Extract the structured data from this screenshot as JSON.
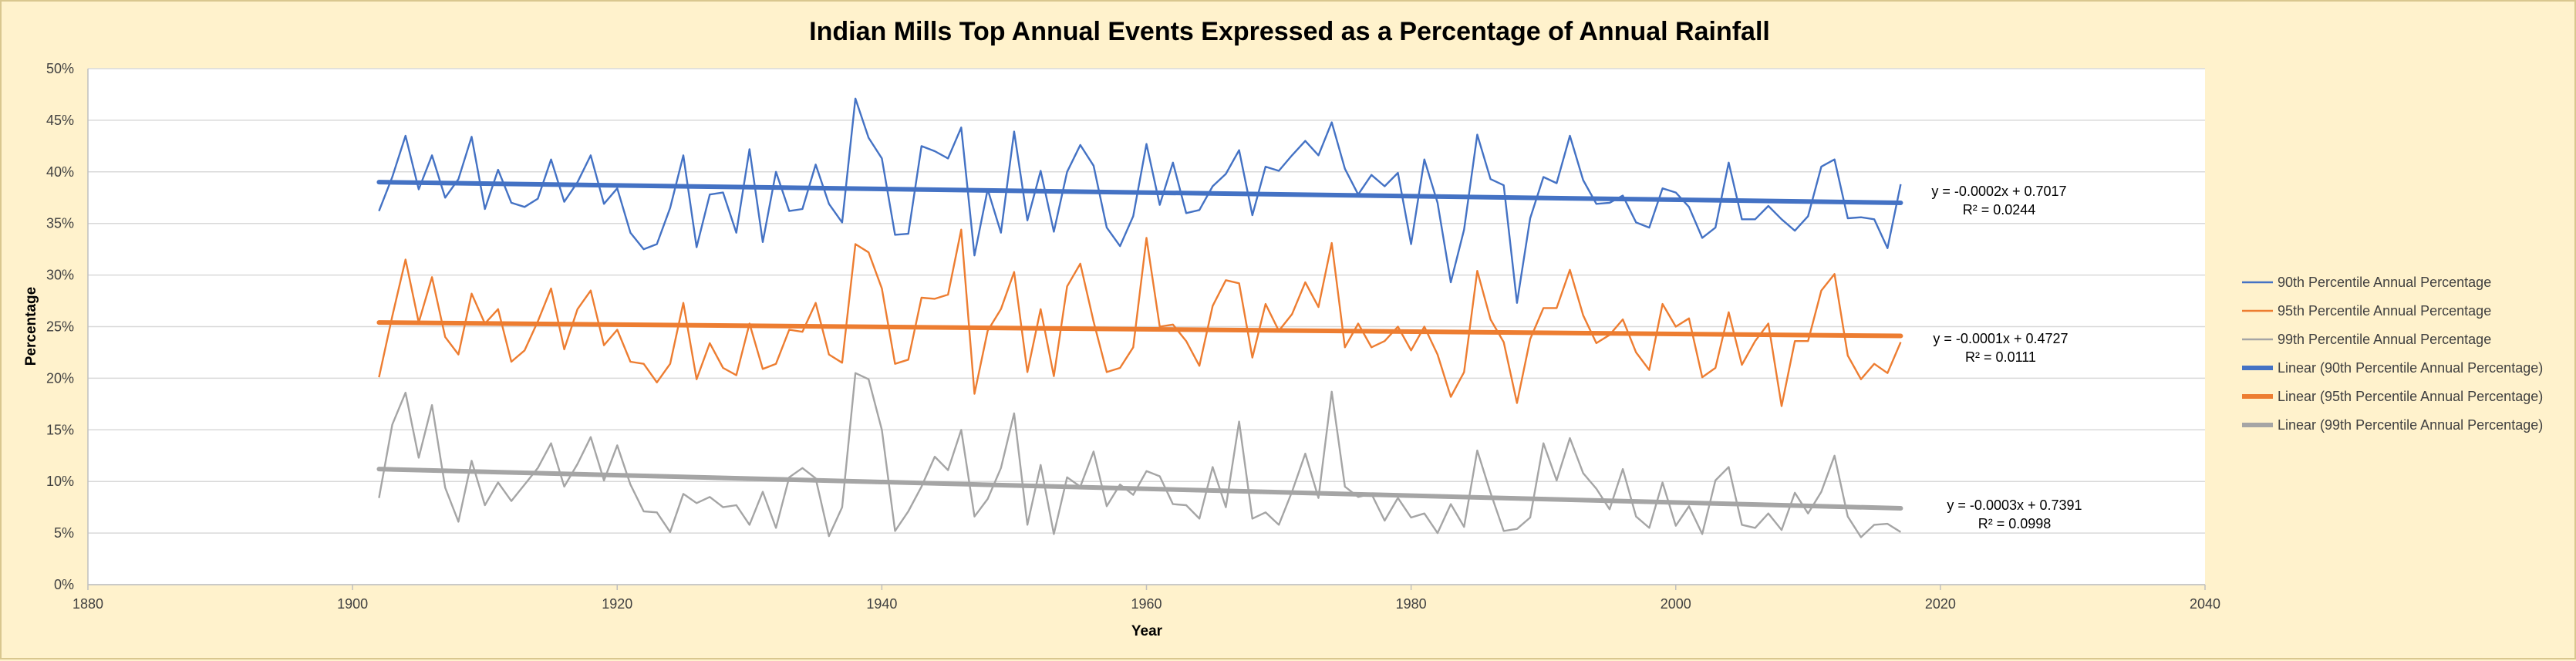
{
  "chart_data": {
    "type": "line",
    "title": "Indian Mills Top Annual Events Expressed as a Percentage of Annual Rainfall",
    "xlabel": "Year",
    "ylabel": "Percentage",
    "xlim": [
      1880,
      2040
    ],
    "ylim": [
      0,
      0.5
    ],
    "x_ticks": [
      "1880",
      "1900",
      "1920",
      "1940",
      "1960",
      "1980",
      "2000",
      "2020",
      "2040"
    ],
    "y_ticks": [
      "0%",
      "5%",
      "10%",
      "15%",
      "20%",
      "25%",
      "30%",
      "35%",
      "40%",
      "45%",
      "50%"
    ],
    "grid": "horizontal",
    "legend_position": "right",
    "x": [
      1902,
      1903,
      1904,
      1905,
      1906,
      1907,
      1908,
      1909,
      1910,
      1911,
      1912,
      1913,
      1914,
      1915,
      1916,
      1917,
      1918,
      1919,
      1920,
      1921,
      1922,
      1923,
      1924,
      1925,
      1926,
      1927,
      1928,
      1929,
      1930,
      1931,
      1932,
      1933,
      1934,
      1935,
      1936,
      1937,
      1938,
      1939,
      1940,
      1941,
      1942,
      1943,
      1944,
      1945,
      1946,
      1947,
      1948,
      1949,
      1950,
      1951,
      1952,
      1953,
      1954,
      1955,
      1956,
      1957,
      1958,
      1959,
      1960,
      1961,
      1962,
      1963,
      1964,
      1965,
      1966,
      1967,
      1968,
      1969,
      1970,
      1971,
      1972,
      1973,
      1974,
      1975,
      1976,
      1977,
      1978,
      1979,
      1980,
      1981,
      1982,
      1983,
      1984,
      1985,
      1986,
      1987,
      1988,
      1989,
      1990,
      1991,
      1992,
      1993,
      1994,
      1995,
      1996,
      1997,
      1998,
      1999,
      2000,
      2001,
      2002,
      2003,
      2004,
      2005,
      2006,
      2007,
      2008,
      2009,
      2010,
      2011,
      2012,
      2013,
      2014,
      2015,
      2016,
      2017
    ],
    "series": [
      {
        "name": "90th Percentile Annual Percentage",
        "color": "#4472c4",
        "values": [
          0.362,
          0.395,
          0.435,
          0.383,
          0.416,
          0.375,
          0.393,
          0.434,
          0.364,
          0.402,
          0.37,
          0.366,
          0.374,
          0.412,
          0.371,
          0.39,
          0.416,
          0.369,
          0.384,
          0.341,
          0.325,
          0.33,
          0.365,
          0.416,
          0.327,
          0.378,
          0.38,
          0.341,
          0.422,
          0.332,
          0.4,
          0.362,
          0.364,
          0.407,
          0.369,
          0.351,
          0.471,
          0.433,
          0.413,
          0.339,
          0.34,
          0.425,
          0.42,
          0.413,
          0.443,
          0.319,
          0.383,
          0.341,
          0.439,
          0.353,
          0.401,
          0.342,
          0.4,
          0.426,
          0.406,
          0.346,
          0.328,
          0.357,
          0.427,
          0.368,
          0.409,
          0.36,
          0.363,
          0.386,
          0.398,
          0.421,
          0.358,
          0.405,
          0.401,
          0.416,
          0.43,
          0.416,
          0.448,
          0.403,
          0.378,
          0.397,
          0.386,
          0.399,
          0.33,
          0.412,
          0.37,
          0.293,
          0.344,
          0.436,
          0.393,
          0.387,
          0.273,
          0.355,
          0.395,
          0.389,
          0.435,
          0.392,
          0.369,
          0.37,
          0.377,
          0.351,
          0.346,
          0.384,
          0.38,
          0.366,
          0.336,
          0.346,
          0.409,
          0.354,
          0.354,
          0.367,
          0.354,
          0.343,
          0.357,
          0.405,
          0.412,
          0.355,
          0.356,
          0.354,
          0.326,
          0.388
        ]
      },
      {
        "name": "95th Percentile Annual Percentage",
        "color": "#ed7d31",
        "values": [
          0.201,
          0.26,
          0.315,
          0.254,
          0.298,
          0.24,
          0.223,
          0.282,
          0.253,
          0.267,
          0.216,
          0.227,
          0.255,
          0.287,
          0.228,
          0.267,
          0.285,
          0.232,
          0.247,
          0.216,
          0.214,
          0.196,
          0.214,
          0.273,
          0.199,
          0.234,
          0.21,
          0.203,
          0.253,
          0.209,
          0.214,
          0.247,
          0.245,
          0.273,
          0.223,
          0.215,
          0.33,
          0.322,
          0.287,
          0.214,
          0.218,
          0.278,
          0.277,
          0.281,
          0.344,
          0.185,
          0.246,
          0.267,
          0.303,
          0.206,
          0.267,
          0.202,
          0.289,
          0.311,
          0.255,
          0.206,
          0.21,
          0.23,
          0.336,
          0.25,
          0.252,
          0.236,
          0.212,
          0.27,
          0.295,
          0.292,
          0.22,
          0.272,
          0.246,
          0.262,
          0.293,
          0.269,
          0.331,
          0.23,
          0.253,
          0.23,
          0.236,
          0.25,
          0.227,
          0.25,
          0.223,
          0.182,
          0.206,
          0.304,
          0.257,
          0.235,
          0.176,
          0.238,
          0.268,
          0.268,
          0.305,
          0.261,
          0.234,
          0.242,
          0.257,
          0.225,
          0.208,
          0.272,
          0.25,
          0.258,
          0.201,
          0.21,
          0.264,
          0.213,
          0.236,
          0.253,
          0.173,
          0.236,
          0.236,
          0.285,
          0.301,
          0.222,
          0.199,
          0.214,
          0.205,
          0.235
        ]
      },
      {
        "name": "99th Percentile Annual Percentage",
        "color": "#a5a5a5",
        "values": [
          0.084,
          0.155,
          0.186,
          0.123,
          0.174,
          0.094,
          0.061,
          0.12,
          0.077,
          0.099,
          0.081,
          0.097,
          0.113,
          0.137,
          0.095,
          0.117,
          0.143,
          0.101,
          0.135,
          0.097,
          0.071,
          0.07,
          0.051,
          0.088,
          0.079,
          0.085,
          0.075,
          0.077,
          0.058,
          0.09,
          0.055,
          0.104,
          0.113,
          0.103,
          0.047,
          0.075,
          0.205,
          0.199,
          0.15,
          0.052,
          0.071,
          0.095,
          0.124,
          0.111,
          0.15,
          0.066,
          0.083,
          0.113,
          0.166,
          0.058,
          0.116,
          0.049,
          0.104,
          0.095,
          0.129,
          0.076,
          0.097,
          0.087,
          0.11,
          0.105,
          0.078,
          0.077,
          0.064,
          0.114,
          0.075,
          0.158,
          0.064,
          0.07,
          0.058,
          0.09,
          0.127,
          0.084,
          0.187,
          0.095,
          0.085,
          0.088,
          0.062,
          0.084,
          0.065,
          0.069,
          0.05,
          0.078,
          0.056,
          0.13,
          0.089,
          0.052,
          0.054,
          0.065,
          0.137,
          0.101,
          0.142,
          0.108,
          0.093,
          0.073,
          0.112,
          0.066,
          0.055,
          0.099,
          0.057,
          0.076,
          0.049,
          0.101,
          0.114,
          0.058,
          0.055,
          0.069,
          0.053,
          0.089,
          0.069,
          0.09,
          0.125,
          0.066,
          0.046,
          0.058,
          0.059,
          0.051
        ]
      }
    ],
    "trendlines": [
      {
        "name": "Linear (90th Percentile Annual Percentage)",
        "color": "#4472c4",
        "x_range": [
          1902,
          2017
        ],
        "y_range": [
          0.39,
          0.37
        ],
        "equation": "y = -0.0002x + 0.7017",
        "r2": "R² = 0.0244"
      },
      {
        "name": "Linear (95th Percentile Annual Percentage)",
        "color": "#ed7d31",
        "x_range": [
          1902,
          2017
        ],
        "y_range": [
          0.254,
          0.241
        ],
        "equation": "y = -0.0001x + 0.4727",
        "r2": "R² = 0.0111"
      },
      {
        "name": "Linear (99th Percentile Annual Percentage)",
        "color": "#a5a5a5",
        "x_range": [
          1902,
          2017
        ],
        "y_range": [
          0.112,
          0.074
        ],
        "equation": "y = -0.0003x + 0.7391",
        "r2": "R² = 0.0998"
      }
    ]
  }
}
